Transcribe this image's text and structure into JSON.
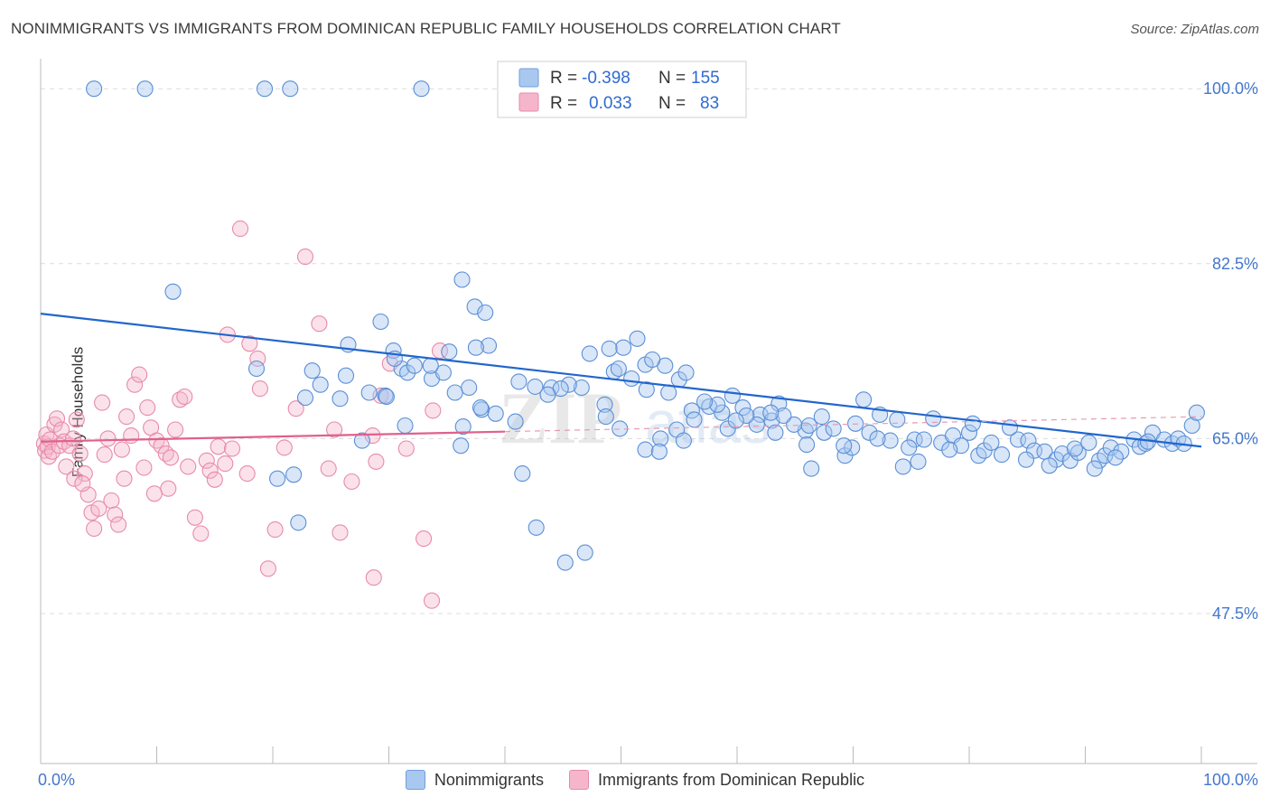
{
  "title": "NONIMMIGRANTS VS IMMIGRANTS FROM DOMINICAN REPUBLIC FAMILY HOUSEHOLDS CORRELATION CHART",
  "source": "Source: ZipAtlas.com",
  "watermark": {
    "zip": "ZIP",
    "atlas": "atlas"
  },
  "colors": {
    "blue": "#2266cc",
    "blue_fill": "#a9c8f0",
    "pink": "#e0608e",
    "pink_fill": "#f5b6cb",
    "axis_text": "#4477cc"
  },
  "legend": {
    "r_label": "R =",
    "n_label": "N =",
    "rows": [
      {
        "series": "Nonimmigrants",
        "r": "-0.398",
        "n": "155"
      },
      {
        "series": "Immigrants from Dominican Republic",
        "r": "0.033",
        "n": "83"
      }
    ]
  },
  "chart_data": {
    "type": "scatter",
    "ylabel": "Family Households",
    "xlim": [
      0,
      100
    ],
    "ylim": [
      32.5,
      103
    ],
    "x_tick_labels": [
      "0.0%",
      "100.0%"
    ],
    "y_ticks": [
      {
        "value": 100.0,
        "label": "100.0%"
      },
      {
        "value": 82.5,
        "label": "82.5%"
      },
      {
        "value": 65.0,
        "label": "65.0%"
      },
      {
        "value": 47.5,
        "label": "47.5%"
      }
    ],
    "series": [
      {
        "name": "Nonimmigrants",
        "trend": {
          "x0": 0,
          "y0": 77.5,
          "x1": 100,
          "y1": 64.2
        },
        "points": [
          [
            4.6,
            100
          ],
          [
            9.0,
            100
          ],
          [
            19.3,
            100
          ],
          [
            21.5,
            100
          ],
          [
            32.8,
            100
          ],
          [
            11.4,
            79.7
          ],
          [
            36.3,
            80.9
          ],
          [
            37.4,
            78.2
          ],
          [
            29.3,
            76.7
          ],
          [
            26.5,
            74.4
          ],
          [
            30.4,
            73.8
          ],
          [
            31.1,
            72.0
          ],
          [
            38.3,
            77.6
          ],
          [
            31.6,
            71.6
          ],
          [
            33.7,
            71.0
          ],
          [
            34.7,
            71.6
          ],
          [
            29.7,
            69.3
          ],
          [
            35.7,
            69.6
          ],
          [
            38.0,
            67.9
          ],
          [
            37.9,
            68.1
          ],
          [
            40.9,
            66.7
          ],
          [
            31.4,
            66.3
          ],
          [
            41.5,
            61.5
          ],
          [
            48.6,
            68.4
          ],
          [
            49.9,
            66.0
          ],
          [
            52.2,
            69.9
          ],
          [
            44.0,
            70.1
          ],
          [
            48.7,
            67.2
          ],
          [
            49.4,
            71.7
          ],
          [
            49.8,
            72.0
          ],
          [
            50.9,
            71.0
          ],
          [
            52.1,
            72.4
          ],
          [
            53.8,
            72.3
          ],
          [
            55.0,
            70.9
          ],
          [
            53.4,
            65.0
          ],
          [
            52.1,
            63.9
          ],
          [
            53.3,
            63.7
          ],
          [
            54.8,
            65.9
          ],
          [
            55.4,
            64.8
          ],
          [
            56.1,
            67.8
          ],
          [
            57.6,
            68.2
          ],
          [
            58.7,
            67.6
          ],
          [
            59.2,
            66.0
          ],
          [
            59.6,
            69.3
          ],
          [
            60.5,
            68.1
          ],
          [
            62.0,
            67.4
          ],
          [
            63.0,
            66.8
          ],
          [
            63.3,
            65.6
          ],
          [
            63.6,
            68.5
          ],
          [
            65.9,
            65.8
          ],
          [
            66.0,
            64.4
          ],
          [
            66.4,
            62.0
          ],
          [
            67.5,
            65.6
          ],
          [
            69.3,
            63.3
          ],
          [
            69.9,
            64.1
          ],
          [
            70.2,
            66.5
          ],
          [
            71.4,
            65.6
          ],
          [
            72.3,
            67.4
          ],
          [
            73.2,
            64.8
          ],
          [
            74.3,
            62.2
          ],
          [
            75.3,
            64.9
          ],
          [
            76.1,
            64.9
          ],
          [
            77.6,
            64.6
          ],
          [
            78.6,
            65.3
          ],
          [
            79.3,
            64.3
          ],
          [
            80.0,
            65.6
          ],
          [
            80.8,
            63.3
          ],
          [
            81.3,
            63.8
          ],
          [
            82.8,
            63.4
          ],
          [
            84.2,
            64.9
          ],
          [
            85.1,
            64.8
          ],
          [
            85.6,
            63.8
          ],
          [
            86.5,
            63.7
          ],
          [
            87.5,
            62.9
          ],
          [
            88.0,
            63.5
          ],
          [
            88.7,
            62.8
          ],
          [
            89.4,
            63.6
          ],
          [
            90.3,
            64.6
          ],
          [
            91.2,
            62.8
          ],
          [
            91.7,
            63.3
          ],
          [
            92.2,
            64.1
          ],
          [
            93.1,
            63.7
          ],
          [
            94.2,
            64.9
          ],
          [
            94.7,
            64.2
          ],
          [
            95.2,
            64.5
          ],
          [
            95.8,
            65.6
          ],
          [
            96.8,
            64.9
          ],
          [
            97.5,
            64.5
          ],
          [
            98.0,
            65.0
          ],
          [
            98.5,
            64.5
          ],
          [
            99.2,
            66.3
          ],
          [
            99.6,
            67.6
          ],
          [
            95.4,
            64.7
          ],
          [
            92.6,
            63.1
          ],
          [
            90.8,
            62.0
          ],
          [
            89.1,
            64.0
          ],
          [
            86.9,
            62.3
          ],
          [
            84.9,
            62.9
          ],
          [
            83.5,
            66.1
          ],
          [
            81.9,
            64.6
          ],
          [
            80.3,
            66.5
          ],
          [
            78.3,
            63.9
          ],
          [
            76.9,
            67.0
          ],
          [
            75.6,
            62.7
          ],
          [
            74.8,
            64.1
          ],
          [
            73.8,
            66.9
          ],
          [
            72.1,
            65.0
          ],
          [
            70.9,
            68.9
          ],
          [
            69.2,
            64.3
          ],
          [
            68.3,
            66.0
          ],
          [
            67.3,
            67.2
          ],
          [
            66.2,
            66.3
          ],
          [
            64.9,
            66.4
          ],
          [
            64.0,
            67.3
          ],
          [
            62.9,
            67.6
          ],
          [
            61.7,
            66.4
          ],
          [
            60.8,
            67.3
          ],
          [
            59.9,
            66.8
          ],
          [
            58.3,
            68.4
          ],
          [
            57.2,
            68.7
          ],
          [
            56.3,
            66.9
          ],
          [
            55.6,
            71.6
          ],
          [
            54.1,
            69.6
          ],
          [
            52.7,
            72.9
          ],
          [
            51.4,
            75.0
          ],
          [
            50.2,
            74.1
          ],
          [
            49.0,
            74.0
          ],
          [
            47.3,
            73.5
          ],
          [
            46.6,
            70.1
          ],
          [
            45.5,
            70.4
          ],
          [
            44.8,
            70.0
          ],
          [
            43.7,
            69.4
          ],
          [
            42.6,
            70.2
          ],
          [
            41.2,
            70.7
          ],
          [
            39.2,
            67.5
          ],
          [
            38.6,
            74.3
          ],
          [
            37.5,
            74.1
          ],
          [
            36.9,
            70.1
          ],
          [
            36.4,
            66.2
          ],
          [
            35.2,
            73.7
          ],
          [
            33.6,
            72.3
          ],
          [
            32.2,
            72.3
          ],
          [
            30.5,
            73.0
          ],
          [
            29.8,
            69.2
          ],
          [
            28.3,
            69.6
          ],
          [
            26.3,
            71.3
          ],
          [
            25.8,
            69.0
          ],
          [
            24.1,
            70.4
          ],
          [
            23.4,
            71.8
          ],
          [
            22.8,
            69.1
          ],
          [
            22.2,
            56.6
          ],
          [
            21.8,
            61.4
          ],
          [
            20.4,
            61.0
          ],
          [
            18.6,
            72.0
          ],
          [
            27.7,
            64.8
          ],
          [
            36.2,
            64.3
          ],
          [
            42.7,
            56.1
          ],
          [
            45.2,
            52.6
          ],
          [
            46.9,
            53.6
          ]
        ]
      },
      {
        "name": "Immigrants from Dominican Republic",
        "trend": {
          "x0": 0,
          "y0": 64.7,
          "x1": 40,
          "y1": 65.7
        },
        "trend_dashed": {
          "x0": 40,
          "y0": 65.7,
          "x1": 100,
          "y1": 67.2
        },
        "points": [
          [
            0.3,
            64.5
          ],
          [
            0.4,
            63.8
          ],
          [
            0.5,
            65.4
          ],
          [
            0.6,
            64.2
          ],
          [
            0.7,
            63.2
          ],
          [
            0.8,
            64.9
          ],
          [
            1.0,
            63.7
          ],
          [
            1.2,
            66.4
          ],
          [
            1.4,
            67.0
          ],
          [
            1.6,
            64.3
          ],
          [
            1.8,
            65.9
          ],
          [
            2.0,
            64.7
          ],
          [
            2.2,
            62.2
          ],
          [
            2.5,
            64.3
          ],
          [
            2.8,
            65.0
          ],
          [
            3.1,
            66.9
          ],
          [
            3.4,
            63.5
          ],
          [
            3.8,
            61.5
          ],
          [
            4.1,
            59.4
          ],
          [
            4.4,
            57.6
          ],
          [
            4.6,
            56.0
          ],
          [
            5.3,
            68.6
          ],
          [
            5.5,
            63.4
          ],
          [
            5.8,
            65.0
          ],
          [
            6.1,
            58.8
          ],
          [
            6.4,
            57.4
          ],
          [
            6.7,
            56.4
          ],
          [
            7.0,
            63.9
          ],
          [
            7.4,
            67.2
          ],
          [
            7.8,
            65.3
          ],
          [
            8.1,
            70.4
          ],
          [
            8.5,
            71.4
          ],
          [
            8.9,
            62.1
          ],
          [
            9.2,
            68.1
          ],
          [
            9.5,
            66.1
          ],
          [
            10.0,
            64.8
          ],
          [
            10.4,
            64.3
          ],
          [
            10.8,
            63.5
          ],
          [
            11.2,
            63.1
          ],
          [
            11.6,
            65.9
          ],
          [
            12.0,
            68.9
          ],
          [
            12.4,
            69.2
          ],
          [
            12.7,
            62.2
          ],
          [
            13.3,
            57.1
          ],
          [
            13.8,
            55.5
          ],
          [
            14.3,
            62.8
          ],
          [
            14.6,
            61.8
          ],
          [
            15.0,
            60.9
          ],
          [
            15.3,
            64.2
          ],
          [
            15.9,
            62.5
          ],
          [
            16.5,
            64.0
          ],
          [
            17.2,
            86.0
          ],
          [
            16.1,
            75.4
          ],
          [
            18.0,
            74.5
          ],
          [
            18.7,
            73.0
          ],
          [
            18.9,
            70.0
          ],
          [
            19.6,
            52.0
          ],
          [
            20.2,
            55.9
          ],
          [
            21.0,
            64.1
          ],
          [
            22.8,
            83.2
          ],
          [
            24.0,
            76.5
          ],
          [
            25.3,
            65.9
          ],
          [
            25.8,
            55.6
          ],
          [
            26.8,
            60.7
          ],
          [
            28.6,
            65.3
          ],
          [
            28.7,
            51.1
          ],
          [
            28.9,
            62.7
          ],
          [
            30.1,
            72.5
          ],
          [
            29.3,
            69.3
          ],
          [
            33.0,
            55.0
          ],
          [
            33.7,
            48.8
          ],
          [
            34.4,
            73.8
          ],
          [
            33.8,
            67.8
          ],
          [
            9.8,
            59.5
          ],
          [
            11.0,
            60.0
          ],
          [
            7.2,
            61.0
          ],
          [
            5.0,
            58.0
          ],
          [
            2.9,
            61.0
          ],
          [
            3.6,
            60.5
          ],
          [
            17.8,
            61.5
          ],
          [
            22.0,
            68.0
          ],
          [
            24.8,
            62.0
          ],
          [
            31.5,
            64.0
          ]
        ]
      }
    ]
  }
}
